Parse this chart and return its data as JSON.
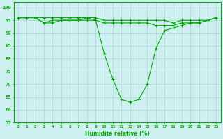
{
  "xlabel": "Humidité relative (%)",
  "xlim": [
    -0.5,
    23.5
  ],
  "ylim": [
    55,
    102
  ],
  "yticks": [
    55,
    60,
    65,
    70,
    75,
    80,
    85,
    90,
    95,
    100
  ],
  "xticks": [
    0,
    1,
    2,
    3,
    4,
    5,
    6,
    7,
    8,
    9,
    10,
    11,
    12,
    13,
    14,
    15,
    16,
    17,
    18,
    19,
    20,
    21,
    22,
    23
  ],
  "background_color": "#cff0f0",
  "grid_color": "#aad4d4",
  "line_color": "#00aa00",
  "series": {
    "top": [
      96,
      96,
      96,
      96,
      96,
      96,
      96,
      96,
      96,
      96,
      95,
      95,
      95,
      95,
      95,
      95,
      95,
      95,
      94,
      95,
      95,
      95,
      95,
      96
    ],
    "high": [
      96,
      96,
      96,
      94,
      95,
      95,
      95,
      95,
      96,
      95,
      94,
      94,
      94,
      94,
      94,
      94,
      93,
      93,
      93,
      94,
      94,
      94,
      95,
      96
    ],
    "low": [
      96,
      96,
      96,
      94,
      94,
      95,
      95,
      95,
      95,
      95,
      82,
      72,
      64,
      63,
      64,
      70,
      84,
      91,
      92,
      93,
      94,
      94,
      95,
      96
    ]
  }
}
